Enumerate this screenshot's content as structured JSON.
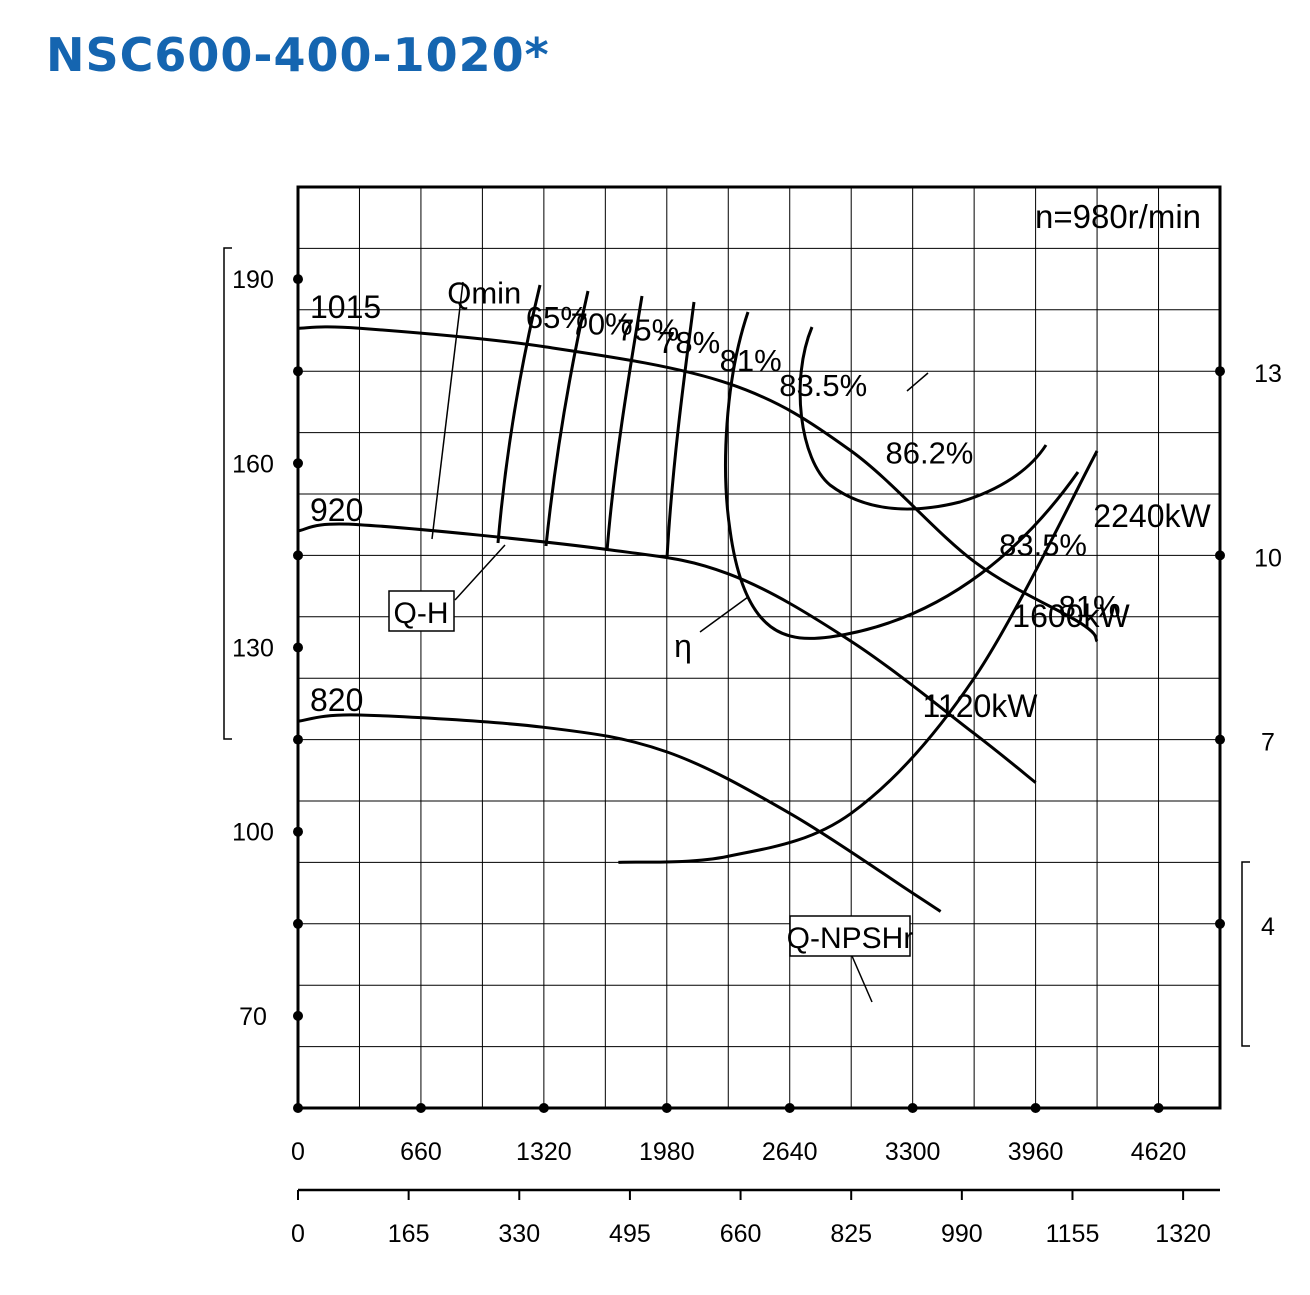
{
  "title": "NSC600-400-1020*",
  "colors": {
    "title": "#1565b0",
    "lines": "#000000",
    "background": "#ffffff"
  },
  "chart_data": {
    "type": "line",
    "speed_label": "n=980r/min",
    "grid": true,
    "x_axis_primary": {
      "range": [
        0,
        4950
      ],
      "ticks": [
        "0",
        "660",
        "1320",
        "1980",
        "2640",
        "3300",
        "3960",
        "4620"
      ]
    },
    "x_axis_secondary": {
      "range": [
        0,
        1375
      ],
      "ticks": [
        "0",
        "165",
        "330",
        "495",
        "660",
        "825",
        "990",
        "1155",
        "1320"
      ]
    },
    "head_axis": {
      "range": [
        55,
        205
      ],
      "ticks": [
        "190",
        "160",
        "130",
        "100",
        "70"
      ]
    },
    "npshr_axis": {
      "range": [
        1,
        16
      ],
      "ticks": [
        "13",
        "10",
        "7",
        "4"
      ]
    },
    "head_curves": [
      {
        "name": "1015",
        "points": [
          [
            0,
            182
          ],
          [
            330,
            182
          ],
          [
            1320,
            179
          ],
          [
            2310,
            173
          ],
          [
            2970,
            162
          ],
          [
            3630,
            144
          ],
          [
            4200,
            134
          ],
          [
            4290,
            131
          ]
        ]
      },
      {
        "name": "920",
        "points": [
          [
            0,
            149
          ],
          [
            330,
            150
          ],
          [
            1650,
            146
          ],
          [
            2310,
            142
          ],
          [
            2970,
            131
          ],
          [
            3630,
            116
          ],
          [
            3960,
            108
          ]
        ]
      },
      {
        "name": "820",
        "points": [
          [
            0,
            118
          ],
          [
            330,
            119
          ],
          [
            1320,
            117
          ],
          [
            1980,
            113
          ],
          [
            2640,
            103
          ],
          [
            3300,
            90
          ],
          [
            3450,
            87
          ]
        ]
      }
    ],
    "efficiency_labels": [
      {
        "label": "Qmin",
        "x": 1000,
        "y": 186
      },
      {
        "label": "65%",
        "x": 1390,
        "y": 182
      },
      {
        "label": "70%",
        "x": 1630,
        "y": 181
      },
      {
        "label": "75%",
        "x": 1880,
        "y": 180
      },
      {
        "label": "78%",
        "x": 2100,
        "y": 178
      },
      {
        "label": "81%",
        "x": 2430,
        "y": 175
      },
      {
        "label": "83.5%",
        "x": 2820,
        "y": 171
      },
      {
        "label": "86.2%",
        "x": 3390,
        "y": 160
      },
      {
        "label": "83.5%",
        "x": 4000,
        "y": 145
      },
      {
        "label": "81%",
        "x": 4250,
        "y": 135
      }
    ],
    "power_labels": [
      "2240kW",
      "1600kW",
      "1120kW"
    ],
    "curve_labels": {
      "qh": "Q-H",
      "eta": "η",
      "npshr": "Q-NPSHr"
    },
    "npshr_curve": {
      "points": [
        [
          1720,
          5.0
        ],
        [
          2310,
          5.1
        ],
        [
          2970,
          5.8
        ],
        [
          3630,
          8.0
        ],
        [
          4290,
          11.7
        ]
      ]
    }
  }
}
